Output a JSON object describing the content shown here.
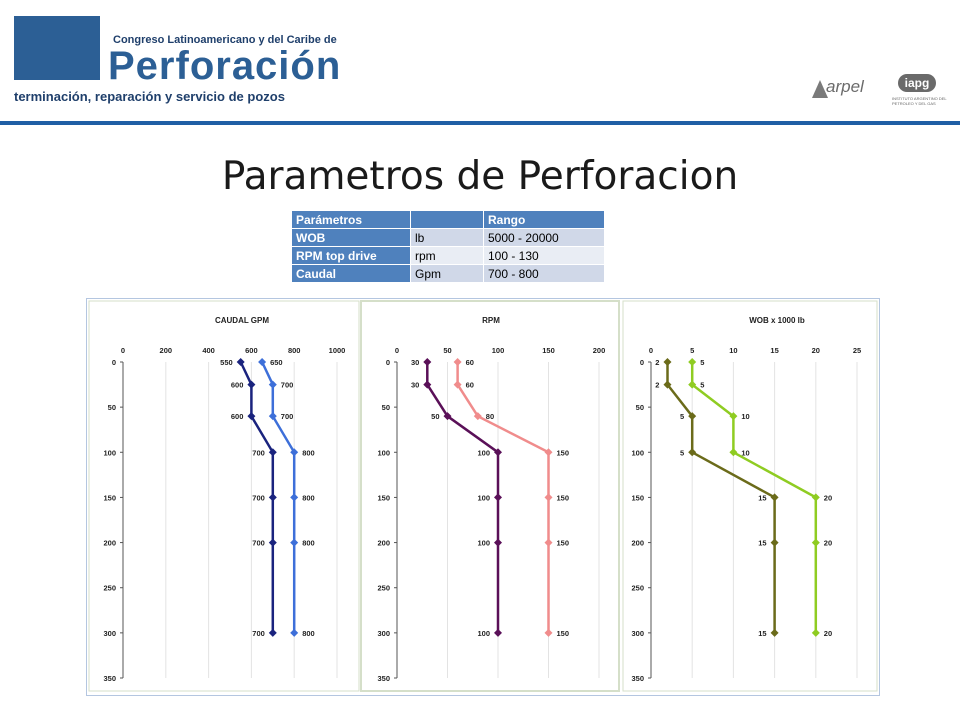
{
  "header": {
    "brand_line1": "Congreso Latinoamericano y del Caribe de",
    "brand_line2": "Perforación",
    "brand_line3": "terminación, reparación y servicio de pozos",
    "partner1": "arpel",
    "partner2": "iapg",
    "partner2_sub": "INSTITUTO ARGENTINO DEL PETROLEO Y DEL GAS"
  },
  "page_title": "Parametros de Perforacion",
  "table": {
    "headers": [
      "Parámetros",
      "",
      "Rango"
    ],
    "rows": [
      [
        "WOB",
        "lb",
        "5000 - 20000"
      ],
      [
        "RPM top drive",
        "rpm",
        "100 - 130"
      ],
      [
        "Caudal",
        "Gpm",
        "700 - 800"
      ]
    ]
  },
  "colors": {
    "accent": "#1f5fa5",
    "table_header": "#4f81bd",
    "caudal_dark": "#1a237e",
    "caudal_light": "#3d6fd9",
    "rpm_dark": "#5a1058",
    "rpm_light": "#f08c8c",
    "wob_dark": "#6b6b1a",
    "wob_light": "#8fcc22"
  },
  "chart_data": [
    {
      "type": "line",
      "title": "CAUDAL GPM",
      "xlim": [
        0,
        1000
      ],
      "xticks": [
        0,
        200,
        400,
        600,
        800,
        1000
      ],
      "ylim": [
        0,
        350
      ],
      "yticks": [
        0,
        50,
        100,
        150,
        200,
        250,
        300,
        350
      ],
      "y_inverted": true,
      "series": [
        {
          "values": [
            [
              550,
              0
            ],
            [
              600,
              25
            ],
            [
              600,
              60
            ],
            [
              700,
              100
            ],
            [
              700,
              150
            ],
            [
              700,
              200
            ],
            [
              700,
              300
            ]
          ],
          "labels": [
            "550",
            "600",
            "600",
            "700",
            "700",
            "700",
            "700"
          ]
        },
        {
          "values": [
            [
              650,
              0
            ],
            [
              700,
              25
            ],
            [
              700,
              60
            ],
            [
              800,
              100
            ],
            [
              800,
              150
            ],
            [
              800,
              200
            ],
            [
              800,
              300
            ]
          ],
          "labels": [
            "650",
            "700",
            "700",
            "800",
            "800",
            "800",
            "800"
          ]
        }
      ]
    },
    {
      "type": "line",
      "title": "RPM",
      "xlim": [
        0,
        200
      ],
      "xticks": [
        0,
        50,
        100,
        150,
        200
      ],
      "ylim": [
        0,
        350
      ],
      "yticks": [
        0,
        50,
        100,
        150,
        200,
        250,
        300,
        350
      ],
      "y_inverted": true,
      "series": [
        {
          "values": [
            [
              30,
              0
            ],
            [
              30,
              25
            ],
            [
              50,
              60
            ],
            [
              100,
              100
            ],
            [
              100,
              150
            ],
            [
              100,
              200
            ],
            [
              100,
              300
            ]
          ],
          "labels": [
            "30",
            "30",
            "50",
            "100",
            "100",
            "100",
            "100"
          ]
        },
        {
          "values": [
            [
              60,
              0
            ],
            [
              60,
              25
            ],
            [
              80,
              60
            ],
            [
              150,
              100
            ],
            [
              150,
              150
            ],
            [
              150,
              200
            ],
            [
              150,
              300
            ]
          ],
          "labels": [
            "60",
            "60",
            "80",
            "150",
            "150",
            "150",
            "150"
          ]
        }
      ]
    },
    {
      "type": "line",
      "title": "WOB x 1000 lb",
      "xlim": [
        0,
        25
      ],
      "xticks": [
        0,
        5,
        10,
        15,
        20,
        25
      ],
      "ylim": [
        0,
        350
      ],
      "yticks": [
        0,
        50,
        100,
        150,
        200,
        250,
        300,
        350
      ],
      "y_inverted": true,
      "series": [
        {
          "values": [
            [
              2,
              0
            ],
            [
              2,
              25
            ],
            [
              5,
              60
            ],
            [
              5,
              100
            ],
            [
              15,
              150
            ],
            [
              15,
              200
            ],
            [
              15,
              300
            ]
          ],
          "labels": [
            "2",
            "2",
            "5",
            "5",
            "15",
            "15",
            "15"
          ]
        },
        {
          "values": [
            [
              5,
              0
            ],
            [
              5,
              25
            ],
            [
              10,
              60
            ],
            [
              10,
              100
            ],
            [
              20,
              150
            ],
            [
              20,
              200
            ],
            [
              20,
              300
            ]
          ],
          "labels": [
            "5",
            "5",
            "10",
            "10",
            "20",
            "20",
            "20"
          ]
        }
      ]
    }
  ]
}
